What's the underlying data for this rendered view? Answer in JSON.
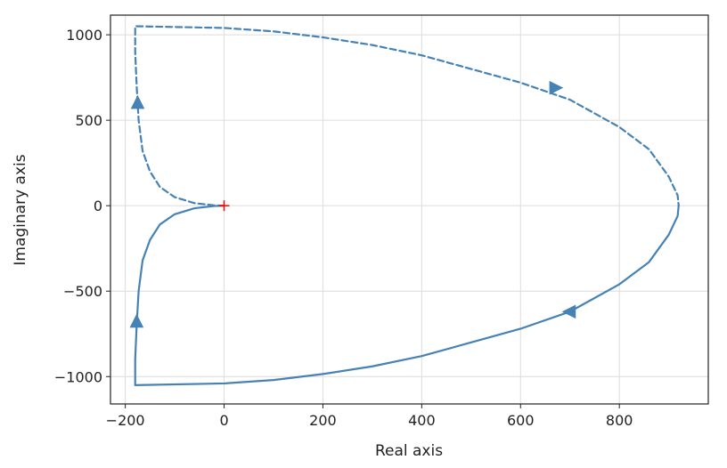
{
  "chart_data": {
    "type": "line",
    "title": "",
    "xlabel": "Real axis",
    "ylabel": "Imaginary axis",
    "xlim": [
      -230,
      980
    ],
    "ylim": [
      -1160,
      1115
    ],
    "grid": true,
    "xticks": [
      -200,
      0,
      200,
      400,
      600,
      800
    ],
    "yticks": [
      1000,
      500,
      0,
      -500,
      -1000
    ],
    "xtick_labels": [
      "−200",
      "0",
      "200",
      "400",
      "600",
      "800"
    ],
    "ytick_labels": [
      "1000",
      "500",
      "0",
      "−500",
      "−1000"
    ],
    "colors": {
      "curve": "#4682b4",
      "critical_point": "#ff0000",
      "grid": "#dcdcdc"
    },
    "series": [
      {
        "style": "solid",
        "x": [
          0,
          -20,
          -60,
          -100,
          -130,
          -150,
          -165,
          -173,
          -177,
          -180,
          -180,
          0,
          100,
          200,
          300,
          400,
          500,
          600,
          700,
          800,
          860,
          900,
          918,
          920
        ],
        "y": [
          0,
          -2,
          -15,
          -50,
          -110,
          -200,
          -320,
          -500,
          -700,
          -900,
          -1050,
          -1040,
          -1020,
          -985,
          -940,
          -880,
          -800,
          -720,
          -620,
          -460,
          -330,
          -170,
          -60,
          0
        ]
      },
      {
        "style": "dashed",
        "x": [
          0,
          -20,
          -60,
          -100,
          -130,
          -150,
          -165,
          -173,
          -177,
          -180,
          -180,
          0,
          100,
          200,
          300,
          400,
          500,
          600,
          700,
          800,
          860,
          900,
          918,
          920
        ],
        "y": [
          0,
          2,
          15,
          50,
          110,
          200,
          320,
          500,
          700,
          900,
          1050,
          1040,
          1020,
          985,
          940,
          880,
          800,
          720,
          620,
          460,
          330,
          170,
          60,
          0
        ]
      }
    ],
    "direction_arrows": [
      {
        "x": -177,
        "y": -680,
        "dir": "up"
      },
      {
        "x": 700,
        "y": -620,
        "dir": "left"
      },
      {
        "x": -175,
        "y": 600,
        "dir": "up"
      },
      {
        "x": 670,
        "y": 690,
        "dir": "right"
      }
    ],
    "critical_point": {
      "x": 0,
      "y": 0,
      "marker": "+"
    }
  }
}
